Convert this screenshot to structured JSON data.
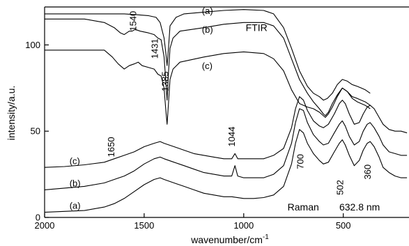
{
  "chart_data": {
    "type": "line",
    "xlabel": "wavenumber/cm",
    "xlabel_exponent": "-1",
    "ylabel": "intensity/a.u.",
    "xlim": [
      2000,
      170
    ],
    "ylim": [
      0,
      122
    ],
    "x_reversed": true,
    "x_ticks": [
      2000,
      1500,
      1000,
      500
    ],
    "y_ticks": [
      0,
      50,
      100
    ],
    "grid": false,
    "series": [
      {
        "name": "(a)",
        "group": "FTIR",
        "points": [
          [
            2000,
            118
          ],
          [
            1900,
            118
          ],
          [
            1800,
            118
          ],
          [
            1700,
            118
          ],
          [
            1600,
            118
          ],
          [
            1540,
            117.5
          ],
          [
            1480,
            117
          ],
          [
            1440,
            116
          ],
          [
            1420,
            113
          ],
          [
            1400,
            104
          ],
          [
            1392,
            96
          ],
          [
            1385,
            88
          ],
          [
            1378,
            98
          ],
          [
            1370,
            111
          ],
          [
            1340,
            116
          ],
          [
            1300,
            118
          ],
          [
            1200,
            119
          ],
          [
            1100,
            120
          ],
          [
            1000,
            120.5
          ],
          [
            900,
            120
          ],
          [
            850,
            118
          ],
          [
            800,
            110
          ],
          [
            760,
            98
          ],
          [
            720,
            85
          ],
          [
            680,
            76
          ],
          [
            650,
            72
          ],
          [
            620,
            70
          ],
          [
            600,
            68
          ],
          [
            580,
            69
          ],
          [
            555,
            72
          ],
          [
            530,
            77
          ],
          [
            505,
            80
          ],
          [
            480,
            79
          ],
          [
            455,
            77
          ],
          [
            430,
            76
          ],
          [
            410,
            75
          ],
          [
            390,
            74
          ],
          [
            365,
            72
          ]
        ]
      },
      {
        "name": "(b)",
        "group": "FTIR",
        "points": [
          [
            2000,
            115
          ],
          [
            1900,
            115
          ],
          [
            1800,
            115
          ],
          [
            1700,
            113
          ],
          [
            1650,
            110
          ],
          [
            1620,
            107
          ],
          [
            1600,
            106
          ],
          [
            1575,
            108
          ],
          [
            1560,
            108
          ],
          [
            1545,
            109
          ],
          [
            1520,
            108
          ],
          [
            1480,
            107
          ],
          [
            1450,
            106
          ],
          [
            1431,
            104
          ],
          [
            1415,
            103
          ],
          [
            1400,
            93
          ],
          [
            1392,
            80
          ],
          [
            1385,
            68
          ],
          [
            1378,
            84
          ],
          [
            1370,
            98
          ],
          [
            1355,
            104
          ],
          [
            1320,
            108
          ],
          [
            1200,
            110
          ],
          [
            1100,
            112
          ],
          [
            1000,
            113
          ],
          [
            900,
            113
          ],
          [
            850,
            111
          ],
          [
            800,
            104
          ],
          [
            760,
            92
          ],
          [
            720,
            80
          ],
          [
            680,
            72
          ],
          [
            650,
            67
          ],
          [
            620,
            63
          ],
          [
            600,
            60
          ],
          [
            590,
            59
          ],
          [
            575,
            61
          ],
          [
            555,
            66
          ],
          [
            530,
            71
          ],
          [
            505,
            75
          ],
          [
            480,
            73
          ],
          [
            455,
            70
          ],
          [
            430,
            69
          ],
          [
            410,
            68
          ],
          [
            390,
            67
          ],
          [
            365,
            65
          ]
        ]
      },
      {
        "name": "(c)",
        "group": "FTIR",
        "points": [
          [
            2000,
            97
          ],
          [
            1900,
            97
          ],
          [
            1800,
            97
          ],
          [
            1700,
            97
          ],
          [
            1660,
            93
          ],
          [
            1630,
            89
          ],
          [
            1600,
            86
          ],
          [
            1575,
            88
          ],
          [
            1550,
            89
          ],
          [
            1530,
            90
          ],
          [
            1510,
            88
          ],
          [
            1480,
            87
          ],
          [
            1450,
            86
          ],
          [
            1431,
            83
          ],
          [
            1415,
            82
          ],
          [
            1400,
            75
          ],
          [
            1392,
            63
          ],
          [
            1385,
            54
          ],
          [
            1378,
            66
          ],
          [
            1370,
            80
          ],
          [
            1355,
            86
          ],
          [
            1320,
            90
          ],
          [
            1200,
            93
          ],
          [
            1100,
            95
          ],
          [
            1000,
            96
          ],
          [
            900,
            95
          ],
          [
            850,
            92
          ],
          [
            800,
            85
          ],
          [
            760,
            74
          ],
          [
            720,
            66
          ],
          [
            680,
            64
          ],
          [
            650,
            63
          ],
          [
            620,
            61
          ],
          [
            600,
            59
          ],
          [
            590,
            58
          ],
          [
            575,
            60
          ],
          [
            555,
            64
          ],
          [
            530,
            70
          ],
          [
            505,
            75
          ],
          [
            480,
            73
          ],
          [
            455,
            69
          ],
          [
            430,
            67
          ],
          [
            410,
            66
          ],
          [
            390,
            65
          ],
          [
            365,
            63
          ]
        ]
      },
      {
        "name": "(c)",
        "group": "Raman",
        "points": [
          [
            2000,
            29
          ],
          [
            1900,
            29.5
          ],
          [
            1800,
            30.5
          ],
          [
            1700,
            32
          ],
          [
            1650,
            34
          ],
          [
            1600,
            36
          ],
          [
            1550,
            38
          ],
          [
            1500,
            41
          ],
          [
            1450,
            43
          ],
          [
            1420,
            44
          ],
          [
            1400,
            43
          ],
          [
            1350,
            41
          ],
          [
            1300,
            39
          ],
          [
            1250,
            37
          ],
          [
            1200,
            36
          ],
          [
            1150,
            35
          ],
          [
            1100,
            34
          ],
          [
            1060,
            34
          ],
          [
            1044,
            37
          ],
          [
            1030,
            34
          ],
          [
            1000,
            34
          ],
          [
            950,
            34
          ],
          [
            900,
            34
          ],
          [
            850,
            36
          ],
          [
            800,
            40
          ],
          [
            760,
            52
          ],
          [
            740,
            63
          ],
          [
            720,
            70
          ],
          [
            700,
            68
          ],
          [
            680,
            62
          ],
          [
            650,
            56
          ],
          [
            620,
            53
          ],
          [
            600,
            52
          ],
          [
            575,
            54
          ],
          [
            545,
            60
          ],
          [
            520,
            66
          ],
          [
            505,
            68
          ],
          [
            490,
            66
          ],
          [
            470,
            60
          ],
          [
            445,
            54
          ],
          [
            420,
            55
          ],
          [
            400,
            60
          ],
          [
            380,
            64
          ],
          [
            365,
            65
          ],
          [
            345,
            63
          ],
          [
            320,
            58
          ],
          [
            300,
            54
          ],
          [
            270,
            51
          ],
          [
            240,
            50
          ],
          [
            210,
            50
          ],
          [
            180,
            49
          ]
        ]
      },
      {
        "name": "(b)",
        "group": "Raman",
        "points": [
          [
            2000,
            16
          ],
          [
            1900,
            17
          ],
          [
            1800,
            18
          ],
          [
            1700,
            20
          ],
          [
            1650,
            22
          ],
          [
            1600,
            24
          ],
          [
            1550,
            27
          ],
          [
            1500,
            31
          ],
          [
            1450,
            34
          ],
          [
            1420,
            35
          ],
          [
            1400,
            34
          ],
          [
            1350,
            32
          ],
          [
            1300,
            30
          ],
          [
            1250,
            28
          ],
          [
            1200,
            26
          ],
          [
            1150,
            25
          ],
          [
            1100,
            24
          ],
          [
            1060,
            24
          ],
          [
            1044,
            30
          ],
          [
            1030,
            24
          ],
          [
            1000,
            23
          ],
          [
            950,
            23
          ],
          [
            900,
            23
          ],
          [
            850,
            25
          ],
          [
            800,
            30
          ],
          [
            760,
            43
          ],
          [
            740,
            55
          ],
          [
            720,
            63
          ],
          [
            700,
            62
          ],
          [
            680,
            55
          ],
          [
            650,
            48
          ],
          [
            620,
            44
          ],
          [
            600,
            42
          ],
          [
            575,
            43
          ],
          [
            545,
            49
          ],
          [
            520,
            54
          ],
          [
            505,
            56
          ],
          [
            490,
            53
          ],
          [
            470,
            47
          ],
          [
            445,
            42
          ],
          [
            420,
            44
          ],
          [
            400,
            50
          ],
          [
            380,
            54
          ],
          [
            365,
            55
          ],
          [
            345,
            52
          ],
          [
            320,
            47
          ],
          [
            300,
            42
          ],
          [
            270,
            38
          ],
          [
            240,
            37
          ],
          [
            210,
            36
          ],
          [
            180,
            36
          ]
        ]
      },
      {
        "name": "(a)",
        "group": "Raman",
        "points": [
          [
            2000,
            3
          ],
          [
            1900,
            3.5
          ],
          [
            1800,
            4
          ],
          [
            1700,
            6
          ],
          [
            1650,
            8
          ],
          [
            1600,
            11
          ],
          [
            1550,
            15
          ],
          [
            1500,
            19
          ],
          [
            1450,
            22
          ],
          [
            1420,
            23
          ],
          [
            1400,
            22
          ],
          [
            1350,
            20
          ],
          [
            1300,
            18
          ],
          [
            1250,
            16
          ],
          [
            1200,
            14
          ],
          [
            1150,
            13
          ],
          [
            1100,
            12
          ],
          [
            1060,
            12
          ],
          [
            1000,
            11
          ],
          [
            950,
            11
          ],
          [
            900,
            11.5
          ],
          [
            850,
            13
          ],
          [
            800,
            18
          ],
          [
            760,
            31
          ],
          [
            740,
            43
          ],
          [
            720,
            51
          ],
          [
            700,
            49
          ],
          [
            680,
            43
          ],
          [
            650,
            37
          ],
          [
            620,
            33
          ],
          [
            600,
            31
          ],
          [
            575,
            32
          ],
          [
            545,
            38
          ],
          [
            520,
            43
          ],
          [
            505,
            45
          ],
          [
            490,
            42
          ],
          [
            470,
            36
          ],
          [
            445,
            30
          ],
          [
            420,
            33
          ],
          [
            400,
            39
          ],
          [
            380,
            43
          ],
          [
            365,
            44
          ],
          [
            345,
            41
          ],
          [
            320,
            35
          ],
          [
            300,
            29
          ],
          [
            270,
            26
          ],
          [
            240,
            24
          ],
          [
            210,
            23
          ],
          [
            180,
            23
          ]
        ]
      }
    ],
    "labels": [
      {
        "text": "(a)",
        "x": 1210,
        "y": 118
      },
      {
        "text": "(b)",
        "x": 1210,
        "y": 107
      },
      {
        "text": "FTIR",
        "x": 990,
        "y": 108,
        "big": true
      },
      {
        "text": "(c)",
        "x": 1210,
        "y": 86
      },
      {
        "text": "(c)",
        "x": 1875,
        "y": 31
      },
      {
        "text": "(b)",
        "x": 1875,
        "y": 18
      },
      {
        "text": "(a)",
        "x": 1875,
        "y": 5
      },
      {
        "text": "Raman",
        "x": 780,
        "y": 4,
        "big": true
      },
      {
        "text": "632.8 nm",
        "x": 520,
        "y": 4,
        "big": true
      }
    ],
    "peak_labels": [
      {
        "text": "1540",
        "x": 1540,
        "y": 108
      },
      {
        "text": "1431",
        "x": 1431,
        "y": 92
      },
      {
        "text": "1385",
        "x": 1378,
        "y": 73
      },
      {
        "text": "1650",
        "x": 1650,
        "y": 35
      },
      {
        "text": "1044",
        "x": 1044,
        "y": 41
      },
      {
        "text": "700",
        "x": 700,
        "y": 28
      },
      {
        "text": "502",
        "x": 500,
        "y": 13
      },
      {
        "text": "360",
        "x": 362,
        "y": 22
      }
    ]
  }
}
